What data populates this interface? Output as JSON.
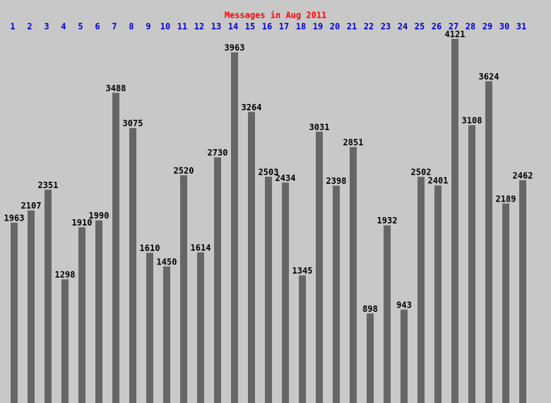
{
  "chart_data": {
    "type": "bar",
    "title": "Messages in Aug 2011",
    "categories": [
      "1",
      "2",
      "3",
      "4",
      "5",
      "6",
      "7",
      "8",
      "9",
      "10",
      "11",
      "12",
      "13",
      "14",
      "15",
      "16",
      "17",
      "18",
      "19",
      "20",
      "21",
      "22",
      "23",
      "24",
      "25",
      "26",
      "27",
      "28",
      "29",
      "30",
      "31"
    ],
    "values": [
      1963,
      2107,
      2351,
      1298,
      1910,
      1990,
      3488,
      3075,
      1610,
      1450,
      2520,
      1614,
      2730,
      3963,
      3264,
      2503,
      2434,
      1345,
      3031,
      2398,
      2851,
      898,
      1932,
      943,
      2502,
      2401,
      4121,
      3108,
      3624,
      2189,
      2462
    ],
    "color": "#666666",
    "title_color": "#ff0000",
    "category_color": "#0000cc"
  }
}
